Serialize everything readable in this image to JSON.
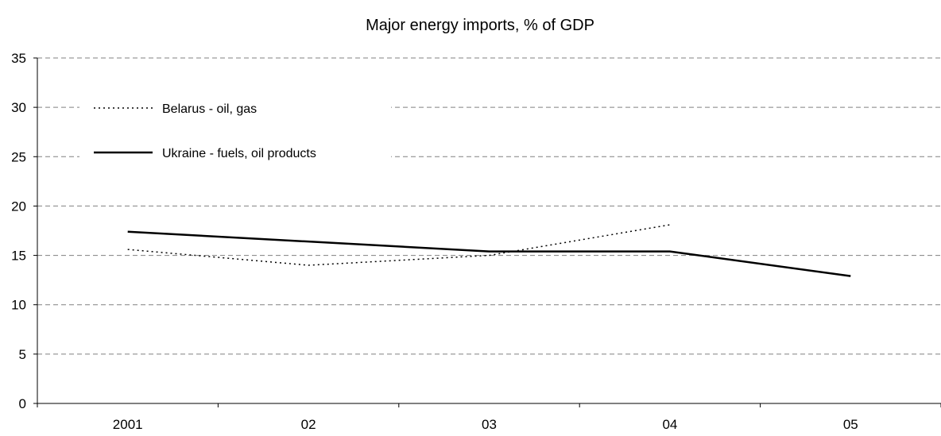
{
  "chart_data": {
    "type": "line",
    "title": "Major energy imports, % of GDP",
    "xlabel": "",
    "ylabel": "",
    "categories": [
      "2001",
      "02",
      "03",
      "04",
      "05"
    ],
    "ylim": [
      0,
      35
    ],
    "yticks": [
      0,
      5,
      10,
      15,
      20,
      25,
      30,
      35
    ],
    "grid": "horizontal dashed",
    "legend_position": "top-left",
    "series": [
      {
        "name": "Belarus - oil, gas",
        "style": "dotted",
        "color": "#000000",
        "values": [
          15.6,
          14.0,
          15.0,
          18.1,
          null
        ]
      },
      {
        "name": "Ukraine - fuels, oil products",
        "style": "solid",
        "color": "#000000",
        "values": [
          17.4,
          16.4,
          15.4,
          15.4,
          12.9
        ]
      }
    ]
  }
}
